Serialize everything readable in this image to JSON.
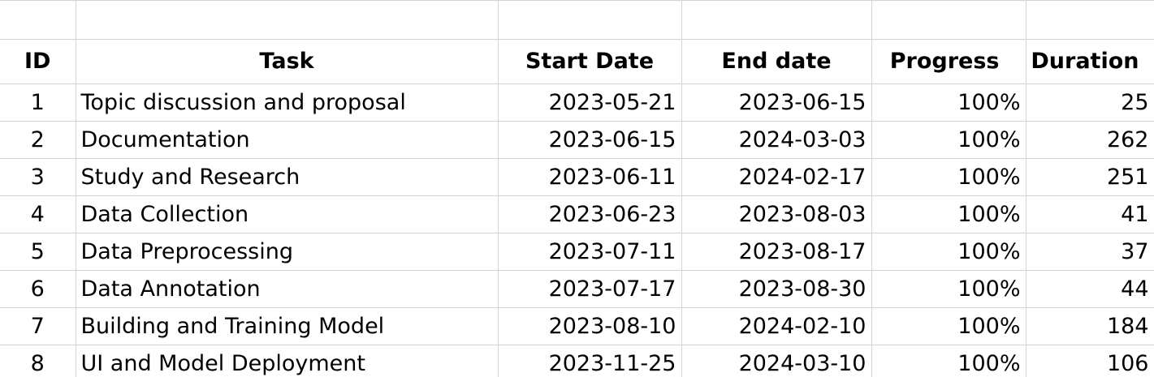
{
  "table": {
    "headers": {
      "id": "ID",
      "task": "Task",
      "start_date": "Start Date",
      "end_date": "End date",
      "progress": "Progress",
      "duration": "Duration"
    },
    "rows": [
      {
        "id": "1",
        "task": "Topic discussion and proposal",
        "start": "2023-05-21",
        "end": "2023-06-15",
        "progress": "100%",
        "duration": "25"
      },
      {
        "id": "2",
        "task": "Documentation",
        "start": "2023-06-15",
        "end": "2024-03-03",
        "progress": "100%",
        "duration": "262"
      },
      {
        "id": "3",
        "task": "Study and Research",
        "start": "2023-06-11",
        "end": "2024-02-17",
        "progress": "100%",
        "duration": "251"
      },
      {
        "id": "4",
        "task": "Data Collection",
        "start": "2023-06-23",
        "end": "2023-08-03",
        "progress": "100%",
        "duration": "41"
      },
      {
        "id": "5",
        "task": "Data Preprocessing",
        "start": "2023-07-11",
        "end": "2023-08-17",
        "progress": "100%",
        "duration": "37"
      },
      {
        "id": "6",
        "task": "Data Annotation",
        "start": "2023-07-17",
        "end": "2023-08-30",
        "progress": "100%",
        "duration": "44"
      },
      {
        "id": "7",
        "task": "Building and Training Model",
        "start": "2023-08-10",
        "end": "2024-02-10",
        "progress": "100%",
        "duration": "184"
      },
      {
        "id": "8",
        "task": "UI and Model Deployment",
        "start": "2023-11-25",
        "end": "2024-03-10",
        "progress": "100%",
        "duration": "106"
      }
    ]
  },
  "colors": {
    "gridline": "#d4d4d4",
    "text": "#000000",
    "background": "#ffffff"
  }
}
